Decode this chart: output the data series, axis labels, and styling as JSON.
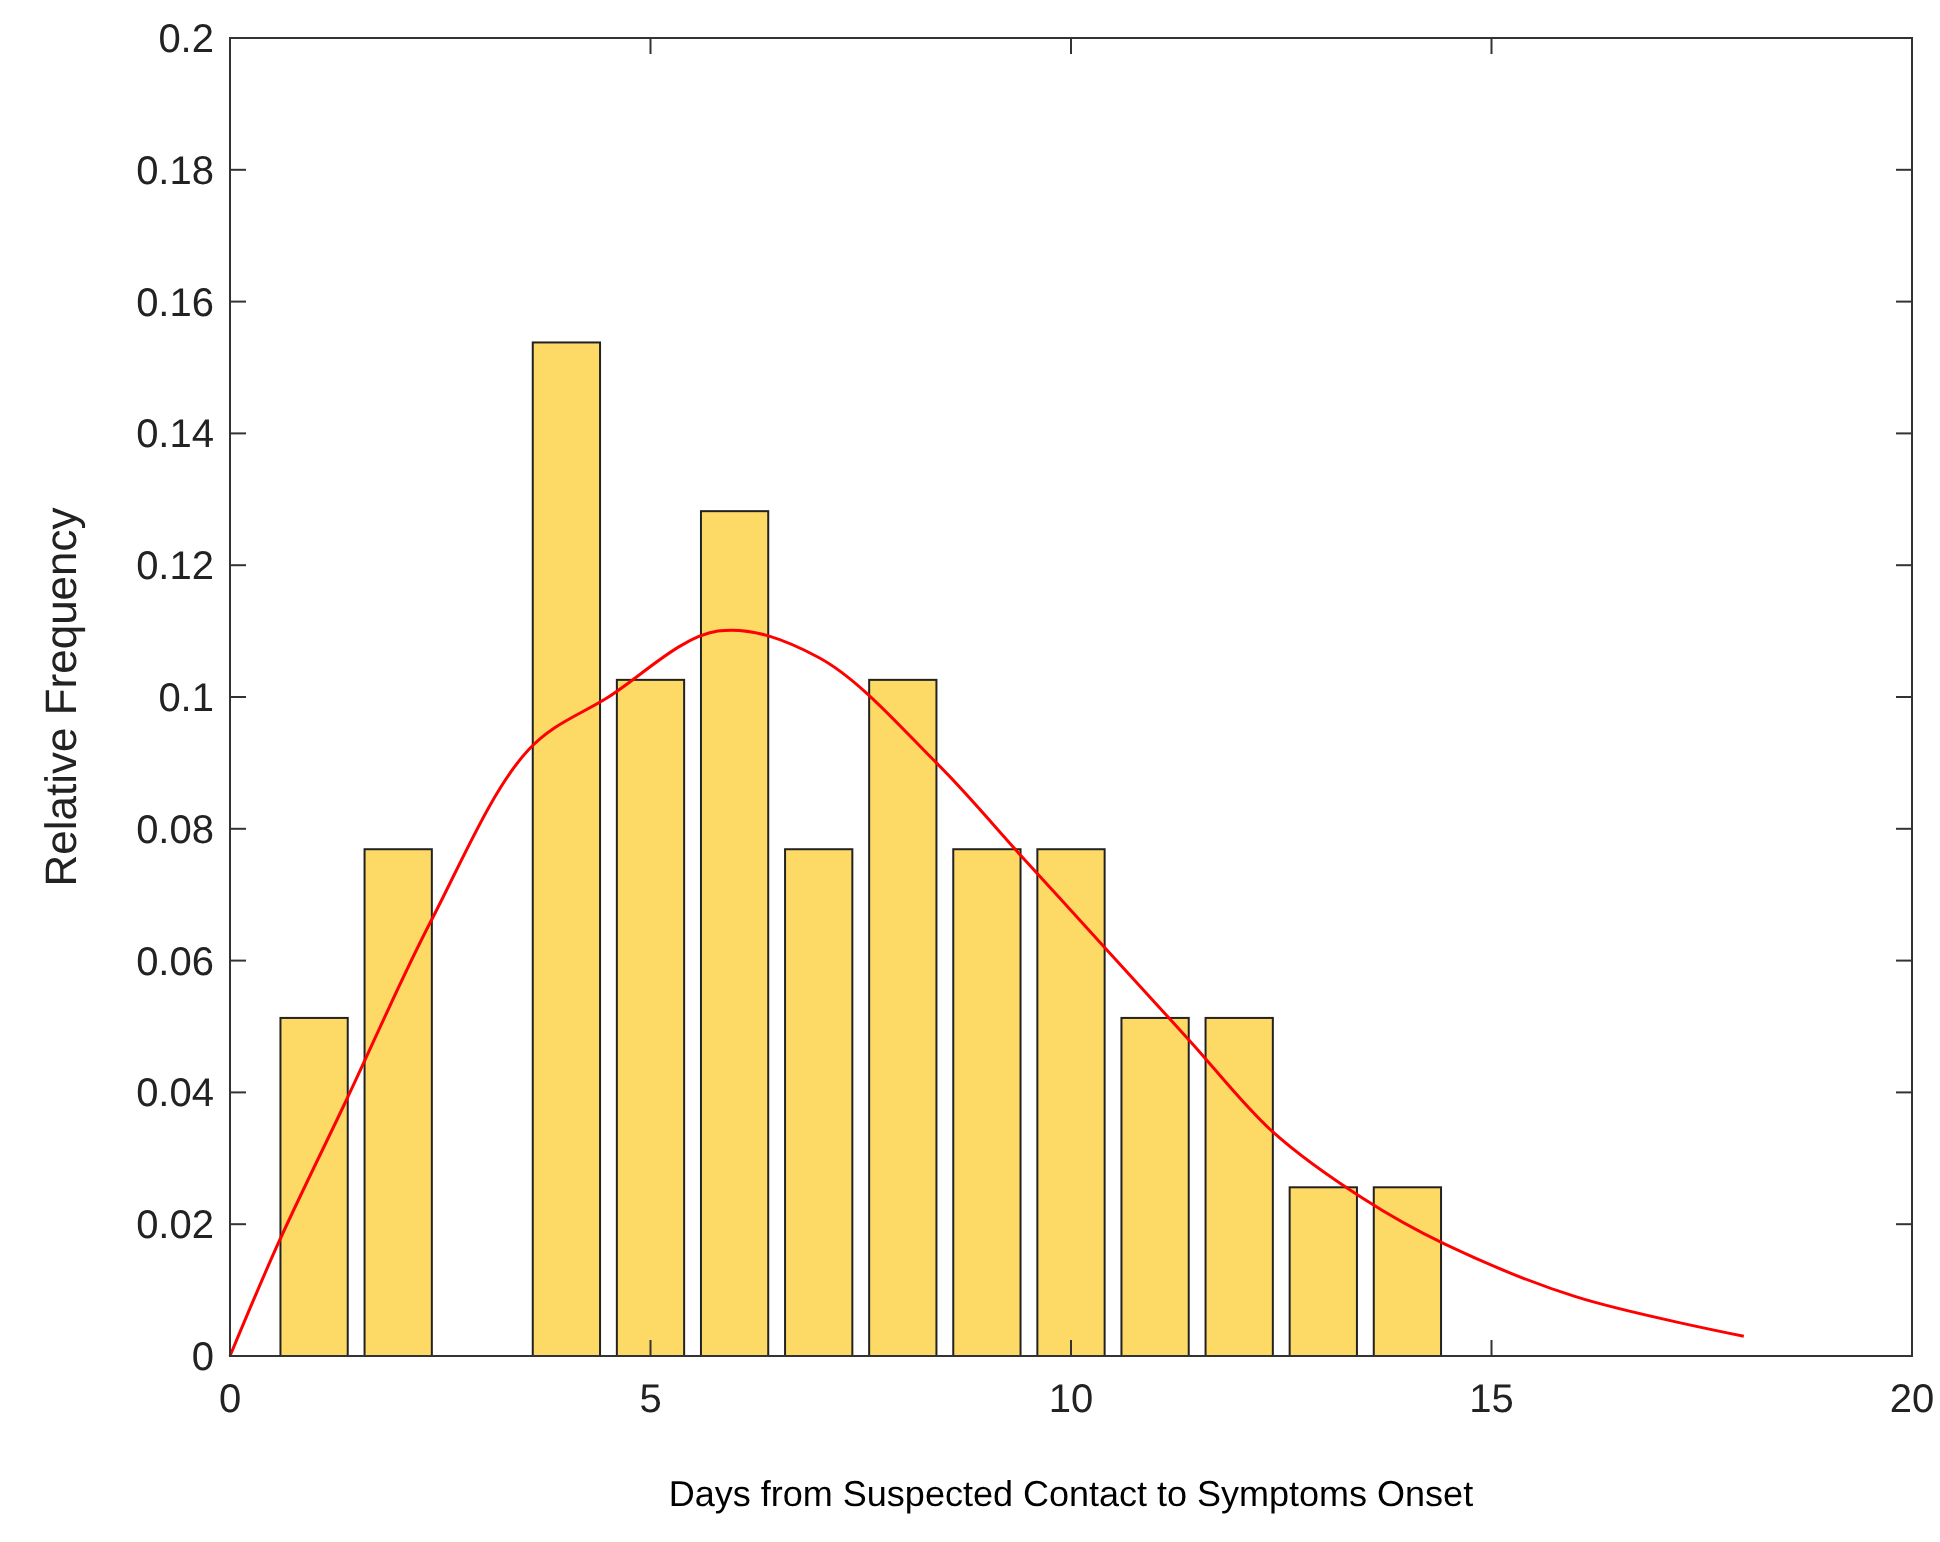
{
  "chart_data": {
    "type": "bar",
    "xlabel": "Days from Suspected Contact to Symptoms Onset",
    "ylabel": "Relative Frequency",
    "xlim": [
      0,
      20
    ],
    "xticks": [
      0,
      5,
      10,
      15,
      20
    ],
    "ylim": [
      0,
      0.2
    ],
    "yticks": [
      0,
      0.02,
      0.04,
      0.06,
      0.08,
      0.1,
      0.12,
      0.14,
      0.16,
      0.18,
      0.2
    ],
    "grid": false,
    "series": [
      {
        "color": "#fdd966",
        "x": [
          1,
          2,
          4,
          5,
          6,
          7,
          8,
          9,
          10,
          11,
          12,
          13,
          14
        ],
        "values": [
          0.0513,
          0.0769,
          0.1538,
          0.1026,
          0.1282,
          0.0769,
          0.1026,
          0.0769,
          0.0769,
          0.0513,
          0.0513,
          0.0256,
          0.0256
        ]
      },
      {
        "type": "line",
        "color": "#ff0000",
        "x": [
          0,
          0.57,
          1.39,
          2.39,
          3.55,
          4.5,
          5.8,
          7,
          8.4,
          9.4,
          10.4,
          11.4,
          12.4,
          13.46,
          14.44,
          16,
          18
        ],
        "values": [
          0,
          0.017,
          0.039,
          0.066,
          0.092,
          0.1,
          0.11,
          0.106,
          0.09,
          0.076,
          0.062,
          0.048,
          0.034,
          0.024,
          0.017,
          0.009,
          0.003
        ]
      }
    ]
  }
}
